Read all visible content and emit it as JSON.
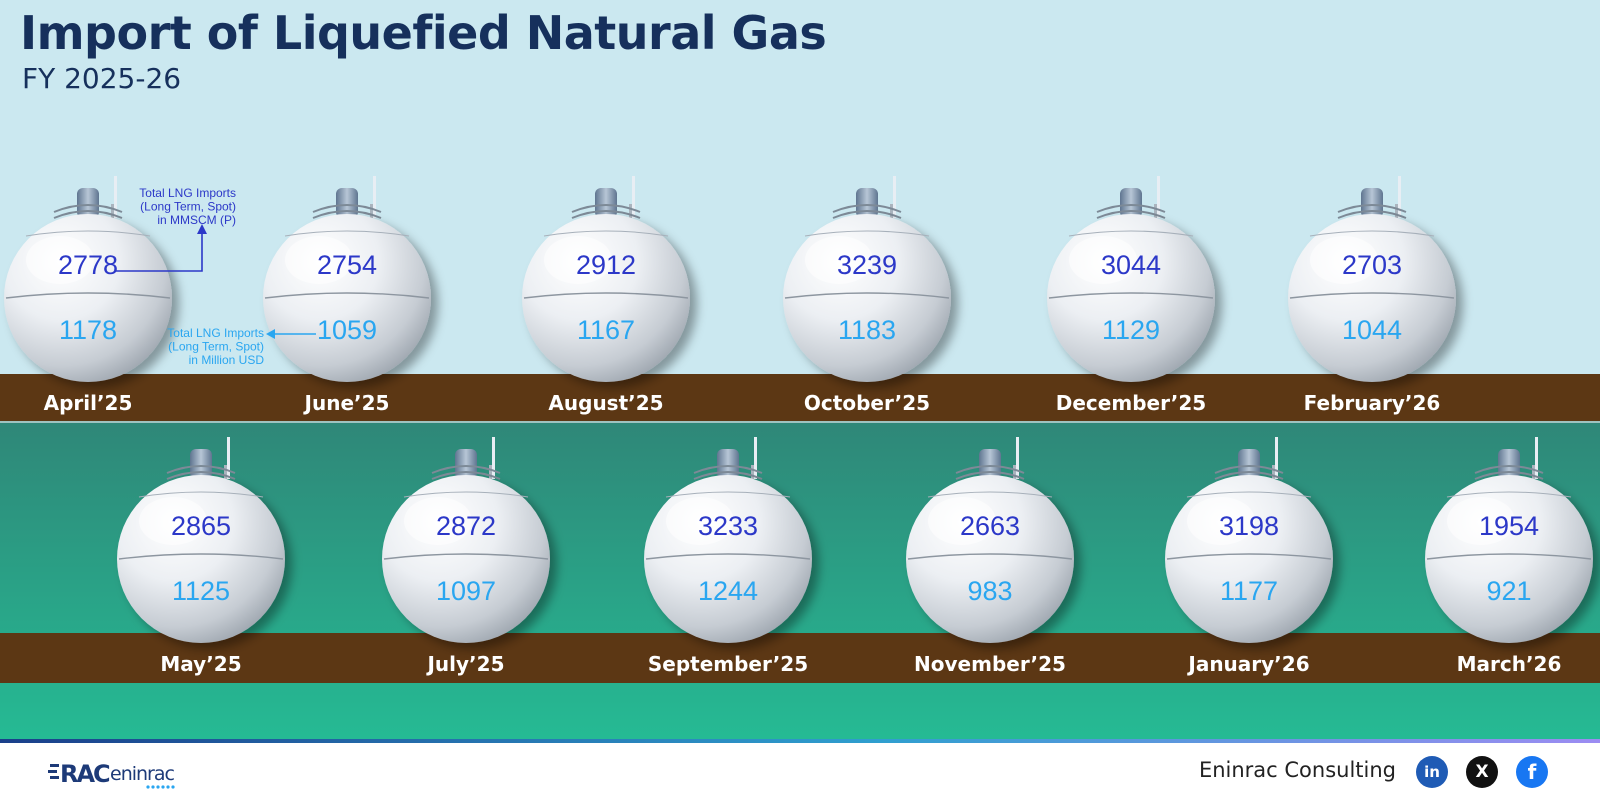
{
  "header": {
    "title": "Import of Liquefied Natural Gas",
    "subtitle": "FY 2025-26"
  },
  "chart_data": {
    "type": "table",
    "title": "Import of Liquefied Natural Gas",
    "subtitle": "FY 2025-26",
    "categories": [
      "April’25",
      "May’25",
      "June’25",
      "July’25",
      "August’25",
      "September’25",
      "October’25",
      "November’25",
      "December’25",
      "January’26",
      "February’26",
      "March’26"
    ],
    "series": [
      {
        "name": "Total LNG Imports (Long Term, Spot) in MMSCM (P)",
        "values": [
          2778,
          2865,
          2754,
          2872,
          2912,
          3233,
          3239,
          2663,
          3044,
          3198,
          2703,
          1954
        ]
      },
      {
        "name": "Total LNG Imports (Long Term, Spot) in Million USD",
        "values": [
          1178,
          1125,
          1059,
          1097,
          1167,
          1244,
          1183,
          983,
          1129,
          1177,
          1044,
          921
        ]
      }
    ],
    "annotations": {
      "volume": [
        "Total LNG Imports",
        "(Long Term, Spot)",
        "in MMSCM (P)"
      ],
      "value": [
        "Total LNG Imports",
        "(Long Term, Spot)",
        "in Million USD"
      ]
    }
  },
  "footer": {
    "logo_text": "RAC eninrac",
    "brand": "Eninrac Consulting",
    "social": {
      "linkedin": "in",
      "x": "X",
      "facebook": "f"
    }
  },
  "colors": {
    "sky": "#cbe8f0",
    "ground": "#5c3714",
    "water_top": "#2f8778",
    "water_bottom": "#25bb94",
    "volume_text": "#2c38c8",
    "value_text": "#2aa6f0",
    "title_text": "#16305c"
  }
}
